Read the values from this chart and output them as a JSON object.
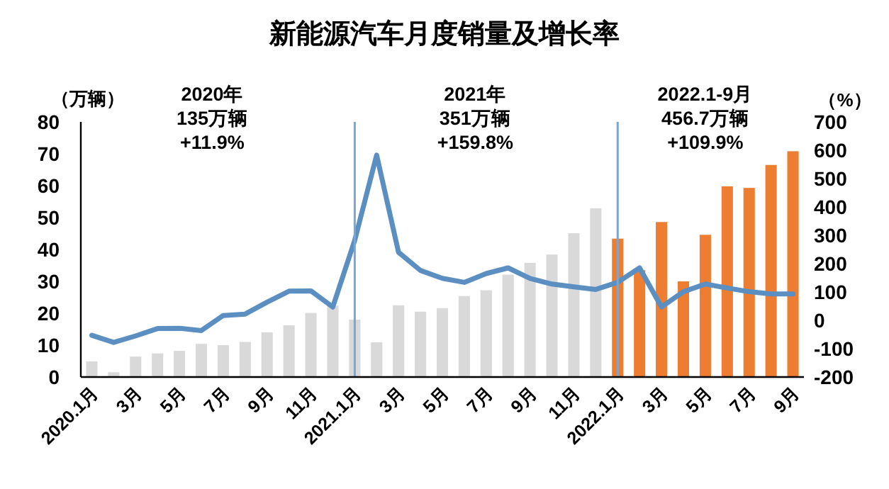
{
  "chart_data": {
    "type": "bar",
    "title": "新能源汽车月度销量及增长率",
    "ylabel": "（万辆）",
    "y2label": "（%）",
    "categories": [
      "2020.1月",
      null,
      "3月",
      null,
      "5月",
      null,
      "7月",
      null,
      "9月",
      null,
      "11月",
      null,
      "2021.1月",
      null,
      "3月",
      null,
      "5月",
      null,
      "7月",
      null,
      "9月",
      null,
      "11月",
      null,
      "2022.1月",
      null,
      "3月",
      null,
      "5月",
      null,
      "7月",
      null,
      "9月"
    ],
    "series": [
      {
        "type": "bar",
        "colors": [
          "#d9d9d9",
          "#d9d9d9",
          "#d9d9d9",
          "#d9d9d9",
          "#d9d9d9",
          "#d9d9d9",
          "#d9d9d9",
          "#d9d9d9",
          "#d9d9d9",
          "#d9d9d9",
          "#d9d9d9",
          "#d9d9d9",
          "#d9d9d9",
          "#d9d9d9",
          "#d9d9d9",
          "#d9d9d9",
          "#d9d9d9",
          "#d9d9d9",
          "#d9d9d9",
          "#d9d9d9",
          "#d9d9d9",
          "#d9d9d9",
          "#d9d9d9",
          "#d9d9d9",
          "#ed7d31",
          "#ed7d31",
          "#ed7d31",
          "#ed7d31",
          "#ed7d31",
          "#ed7d31",
          "#ed7d31",
          "#ed7d31",
          "#ed7d31"
        ],
        "values": [
          4.9,
          1.5,
          6.4,
          7.4,
          8.2,
          10.4,
          10.0,
          11.0,
          14.0,
          16.2,
          20.1,
          22.4,
          18.0,
          10.9,
          22.5,
          20.5,
          21.6,
          25.4,
          27.2,
          32.1,
          35.8,
          38.4,
          45.1,
          52.9,
          43.4,
          33.5,
          48.6,
          30.0,
          44.6,
          59.8,
          59.3,
          66.5,
          70.8
        ]
      },
      {
        "type": "line",
        "axis": "y2",
        "color": "#5b8fc2",
        "values": [
          -53,
          -78,
          -55,
          -29,
          -28,
          -36,
          17,
          22,
          64,
          103,
          104,
          47,
          282,
          583,
          240,
          176,
          148,
          134,
          165,
          185,
          148,
          128,
          118,
          109,
          134,
          185,
          47,
          101,
          128,
          114,
          101,
          93,
          93
        ]
      }
    ],
    "ylim": [
      0,
      80
    ],
    "yticks": [
      0,
      10,
      20,
      30,
      40,
      50,
      60,
      70,
      80
    ],
    "y2lim": [
      -200,
      700
    ],
    "y2ticks": [
      -200,
      -100,
      0,
      100,
      200,
      300,
      400,
      500,
      600,
      700
    ],
    "grid": false,
    "legend": false,
    "ref_lines": [
      {
        "axis": "x",
        "value": "2021.1月",
        "color": "#7aa6d0"
      },
      {
        "axis": "x",
        "value": "2022.1月",
        "color": "#7aa6d0"
      }
    ],
    "annotations": [
      "2020年\n135万辆\n+11.9%",
      "2021年\n351万辆\n+159.8%",
      "2022.1-9月\n456.7万辆\n+109.9%"
    ]
  }
}
